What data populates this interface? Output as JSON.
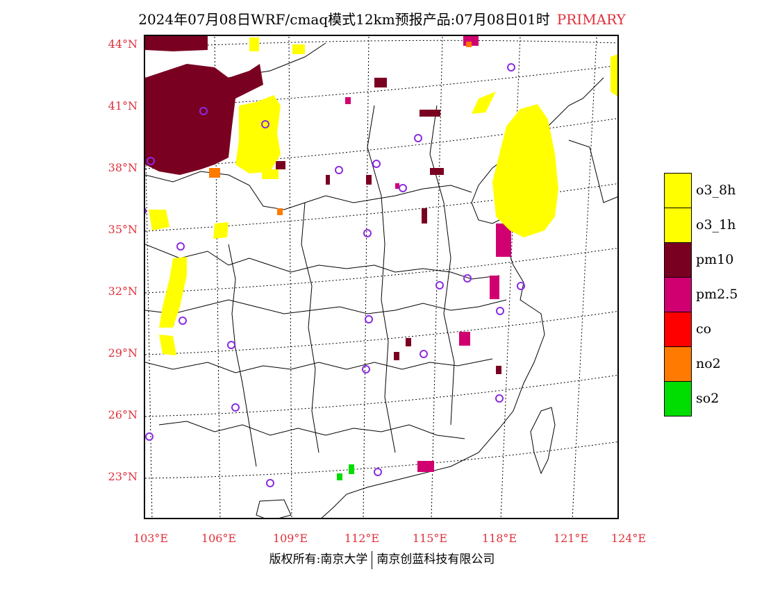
{
  "title": {
    "main": "2024年07月08日WRF/cmaq模式12km预报产品:07月08日01时",
    "tag": "PRIMARY"
  },
  "axes": {
    "lat_labels": [
      "44°N",
      "41°N",
      "38°N",
      "35°N",
      "32°N",
      "29°N",
      "26°N",
      "23°N"
    ],
    "lon_labels": [
      "103°E",
      "106°E",
      "109°E",
      "112°E",
      "115°E",
      "118°E",
      "121°E",
      "124°E"
    ]
  },
  "legend": [
    {
      "label": "o3_8h",
      "color": "#ffff00"
    },
    {
      "label": "o3_1h",
      "color": "#ffff00"
    },
    {
      "label": "pm10",
      "color": "#7a0022"
    },
    {
      "label": "pm2.5",
      "color": "#d10070"
    },
    {
      "label": "co",
      "color": "#ff0000"
    },
    {
      "label": "no2",
      "color": "#ff7a00"
    },
    {
      "label": "so2",
      "color": "#00dd00"
    }
  ],
  "footer": {
    "left": "版权所有:南京大学",
    "right": "南京创蓝科技有限公司"
  },
  "colors": {
    "label_red": "#e0303a",
    "station_circle": "#8a2be2"
  }
}
